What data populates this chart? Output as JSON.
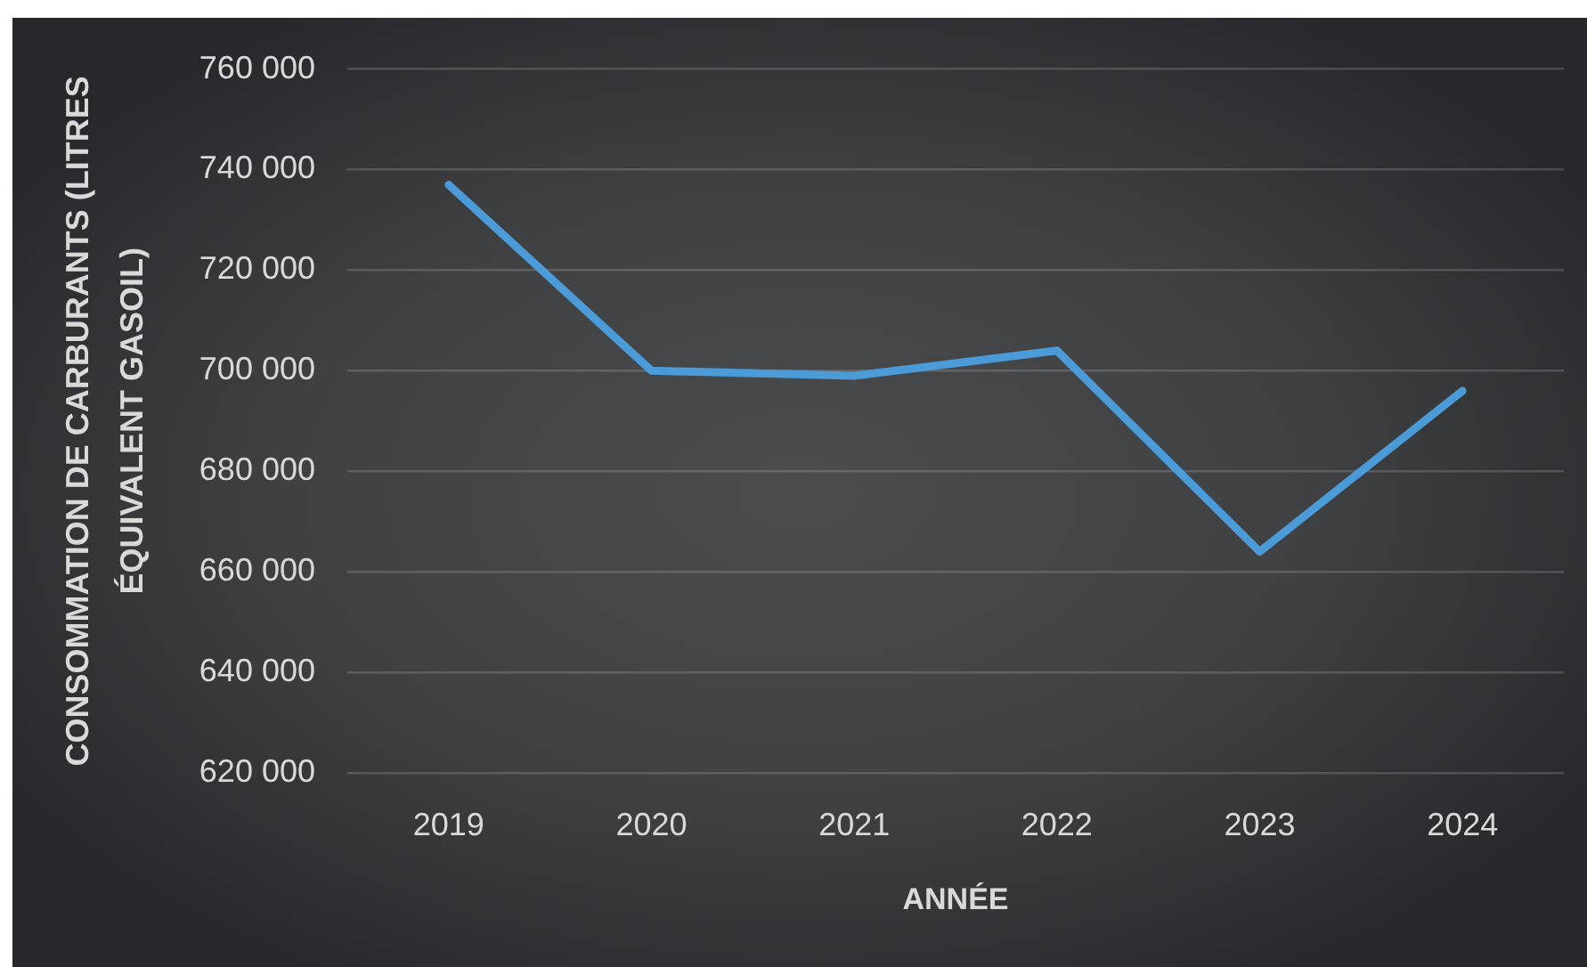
{
  "chart_data": {
    "type": "line",
    "xlabel": "ANNÉE",
    "ylabel": "CONSOMMATION DE CARBURANTS (LITRES ÉQUIVALENT GASOIL)",
    "categories": [
      "2019",
      "2020",
      "2021",
      "2022",
      "2023",
      "2024"
    ],
    "series": [
      {
        "color": "#4a9bd8",
        "values": [
          737000,
          700000,
          699000,
          704000,
          664000,
          696000
        ]
      }
    ],
    "ylim": [
      620000,
      760000
    ],
    "yticks": [
      {
        "value": 620000,
        "label": "620 000"
      },
      {
        "value": 640000,
        "label": "640 000"
      },
      {
        "value": 660000,
        "label": "660 000"
      },
      {
        "value": 680000,
        "label": "680 000"
      },
      {
        "value": 700000,
        "label": "700 000"
      },
      {
        "value": 720000,
        "label": "720 000"
      },
      {
        "value": 740000,
        "label": "740 000"
      },
      {
        "value": 760000,
        "label": "760 000"
      }
    ],
    "grid": "y",
    "marker": "none",
    "line_style": "solid"
  }
}
